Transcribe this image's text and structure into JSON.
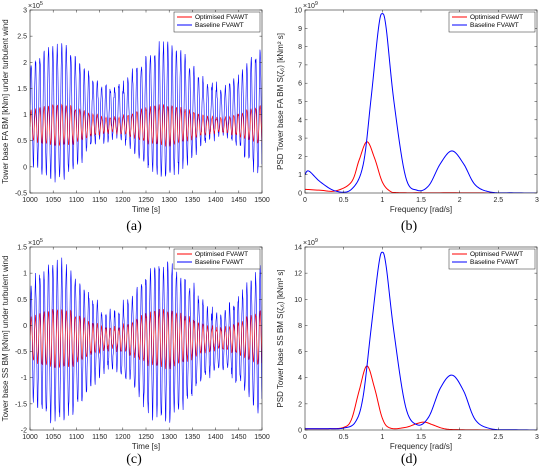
{
  "captions": [
    "(a)",
    "(b)",
    "(c)",
    "(d)"
  ],
  "colors": {
    "optimised": "#ff0000",
    "baseline": "#0000ff"
  },
  "chart_data": [
    {
      "type": "line",
      "panel": "a",
      "ylabel": "Tower base FA BM [kNm] under turbulent wind",
      "xlabel": "Time [s]",
      "y_exponent": "×10",
      "y_exponent_power": "5",
      "xlim": [
        1000,
        1500
      ],
      "ylim": [
        -0.5,
        3
      ],
      "xticks": [
        "1000",
        "1050",
        "1100",
        "1150",
        "1200",
        "1250",
        "1300",
        "1350",
        "1400",
        "1450",
        "1500"
      ],
      "yticks": [
        "-0.5",
        "0",
        "0.5",
        "1",
        "1.5",
        "2",
        "2.5",
        "3"
      ],
      "ytick_values": [
        -0.5,
        0,
        0.5,
        1,
        1.5,
        2,
        2.5,
        3
      ],
      "legend_position": "top-right",
      "series": [
        {
          "name": "Optimised FVAWT",
          "color": "#ff0000",
          "mean": 0.8,
          "amplitude": 0.35,
          "period": 9.5
        },
        {
          "name": "Baseline FVAWT",
          "color": "#0000ff",
          "mean": 1.05,
          "amplitude": 1.15,
          "period": 9.5
        }
      ]
    },
    {
      "type": "line",
      "panel": "b",
      "ylabel": "PSD Tower base FA BM S(ζ₆) [kNm² s]",
      "xlabel": "Frequency [rad/s]",
      "y_exponent": "×10",
      "y_exponent_power": "9",
      "xlim": [
        0,
        3
      ],
      "ylim": [
        0,
        10
      ],
      "xticks": [
        "0",
        "0.5",
        "1",
        "1.5",
        "2",
        "2.5",
        "3"
      ],
      "xtick_values": [
        0,
        0.5,
        1,
        1.5,
        2,
        2.5,
        3
      ],
      "yticks": [
        "0",
        "1",
        "2",
        "3",
        "4",
        "5",
        "6",
        "7",
        "8",
        "9",
        "10"
      ],
      "ytick_values": [
        0,
        1,
        2,
        3,
        4,
        5,
        6,
        7,
        8,
        9,
        10
      ],
      "legend_position": "top-right",
      "series": [
        {
          "name": "Optimised FVAWT",
          "color": "#ff0000",
          "x": [
            0,
            0.2,
            0.4,
            0.6,
            0.7,
            0.8,
            0.9,
            1.0,
            1.1,
            1.2,
            1.5,
            2.0,
            2.5,
            3.0
          ],
          "y": [
            0.2,
            0.15,
            0.12,
            0.6,
            1.8,
            2.8,
            1.9,
            0.6,
            0.1,
            0.02,
            0.01,
            0.01,
            0,
            0
          ]
        },
        {
          "name": "Baseline FVAWT",
          "color": "#0000ff",
          "x": [
            0,
            0.05,
            0.2,
            0.4,
            0.6,
            0.75,
            0.85,
            0.95,
            1.0,
            1.05,
            1.15,
            1.3,
            1.45,
            1.6,
            1.75,
            1.9,
            2.05,
            2.2,
            2.4,
            2.7,
            3.0
          ],
          "y": [
            1.0,
            1.2,
            0.6,
            0.1,
            0.2,
            1.5,
            5.0,
            9.0,
            9.8,
            9.0,
            5.0,
            0.9,
            0.15,
            0.4,
            1.6,
            2.3,
            1.6,
            0.45,
            0.05,
            0.01,
            0
          ]
        }
      ]
    },
    {
      "type": "line",
      "panel": "c",
      "ylabel": "Tower base SS BM [kNm] under turbulent wind",
      "xlabel": "Time [s]",
      "y_exponent": "×10",
      "y_exponent_power": "5",
      "xlim": [
        1000,
        1500
      ],
      "ylim": [
        -2,
        1.5
      ],
      "xticks": [
        "1000",
        "1050",
        "1100",
        "1150",
        "1200",
        "1250",
        "1300",
        "1350",
        "1400",
        "1450",
        "1500"
      ],
      "yticks": [
        "-2",
        "-1.5",
        "-1",
        "-0.5",
        "0",
        "0.5",
        "1",
        "1.5"
      ],
      "ytick_values": [
        -2,
        -1.5,
        -1,
        -0.5,
        0,
        0.5,
        1,
        1.5
      ],
      "legend_position": "top-right",
      "series": [
        {
          "name": "Optimised FVAWT",
          "color": "#ff0000",
          "mean": -0.25,
          "amplitude": 0.5,
          "period": 9.5
        },
        {
          "name": "Baseline FVAWT",
          "color": "#0000ff",
          "mean": -0.3,
          "amplitude": 1.35,
          "period": 9.5
        }
      ]
    },
    {
      "type": "line",
      "panel": "d",
      "ylabel": "PSD Tower base SS BM S(ζ₆) [kNm² s]",
      "xlabel": "Frequency [rad/s]",
      "y_exponent": "×10",
      "y_exponent_power": "9",
      "xlim": [
        0,
        3
      ],
      "ylim": [
        0,
        14
      ],
      "xticks": [
        "0",
        "0.5",
        "1",
        "1.5",
        "2",
        "2.5",
        "3"
      ],
      "xtick_values": [
        0,
        0.5,
        1,
        1.5,
        2,
        2.5,
        3
      ],
      "yticks": [
        "0",
        "2",
        "4",
        "6",
        "8",
        "10",
        "12",
        "14"
      ],
      "ytick_values": [
        0,
        2,
        4,
        6,
        8,
        10,
        12,
        14
      ],
      "legend_position": "top-right",
      "series": [
        {
          "name": "Optimised FVAWT",
          "color": "#ff0000",
          "x": [
            0,
            0.3,
            0.5,
            0.6,
            0.7,
            0.8,
            0.9,
            1.0,
            1.1,
            1.3,
            1.45,
            1.55,
            1.65,
            1.8,
            2.0,
            2.5,
            3.0
          ],
          "y": [
            0.1,
            0.1,
            0.2,
            0.8,
            3.0,
            4.9,
            3.2,
            0.9,
            0.15,
            0.2,
            0.5,
            0.6,
            0.4,
            0.1,
            0.02,
            0,
            0
          ]
        },
        {
          "name": "Baseline FVAWT",
          "color": "#0000ff",
          "x": [
            0,
            0.3,
            0.5,
            0.65,
            0.75,
            0.85,
            0.95,
            1.0,
            1.05,
            1.15,
            1.3,
            1.45,
            1.6,
            1.75,
            1.9,
            2.05,
            2.2,
            2.4,
            2.7,
            3.0
          ],
          "y": [
            0.1,
            0.1,
            0.15,
            0.6,
            2.5,
            7.5,
            12.5,
            13.6,
            12.5,
            7.5,
            1.8,
            0.4,
            1.0,
            3.2,
            4.2,
            3.0,
            0.8,
            0.1,
            0.02,
            0
          ]
        }
      ]
    }
  ]
}
